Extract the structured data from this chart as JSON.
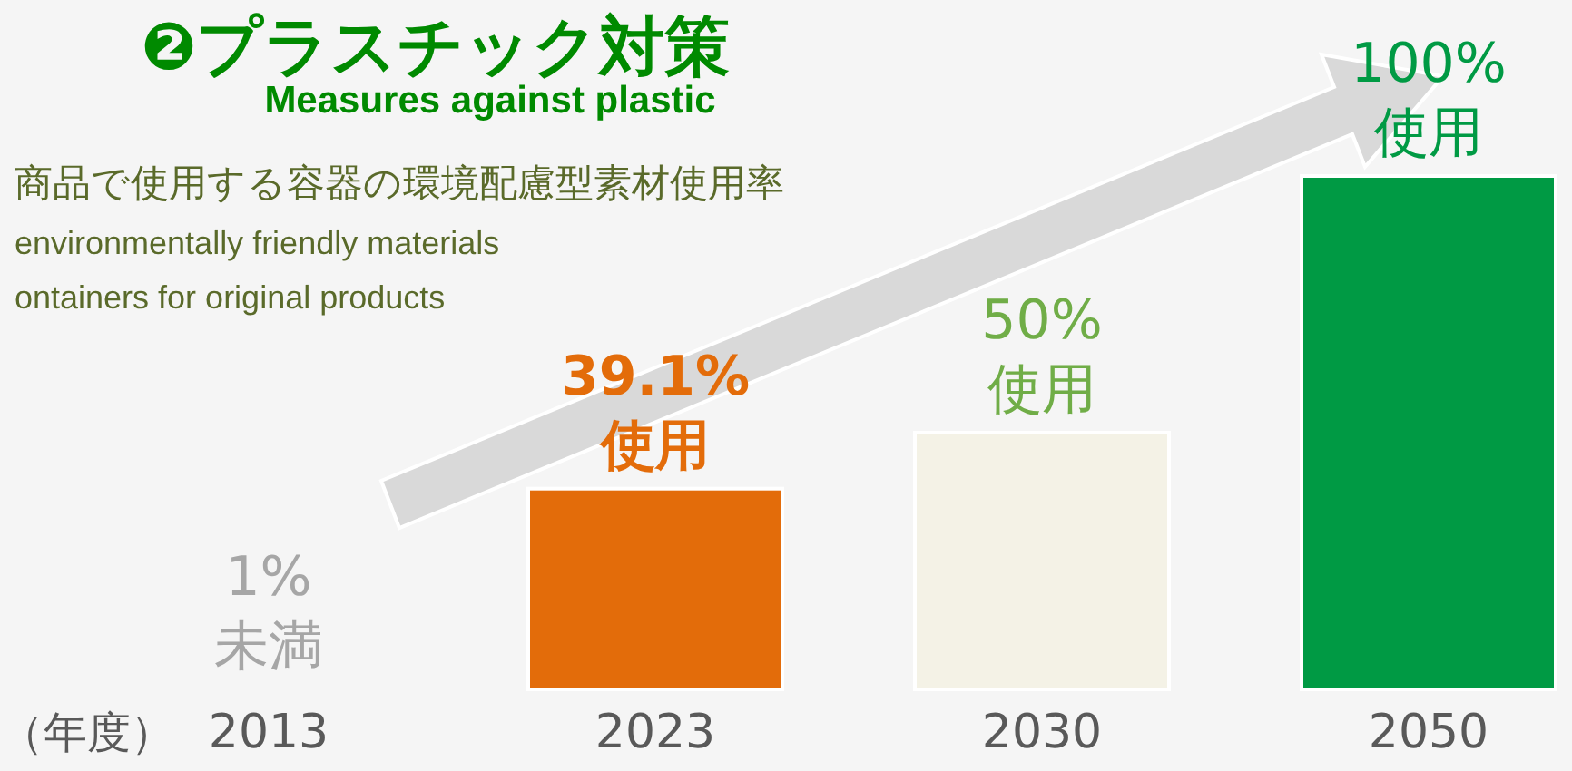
{
  "chart_data": {
    "type": "bar",
    "title": "❷プラスチック対策",
    "subtitle": "Measures against plastic",
    "xlabel": "（年度）",
    "annotations": [
      "商品で使用する容器の環境配慮型素材使用率",
      "environmentally friendly materials",
      "ontainers for original products"
    ],
    "categories": [
      "2013",
      "2023",
      "2030",
      "2050"
    ],
    "values": [
      null,
      39.1,
      50,
      100
    ],
    "colors": [
      "#a6a6a6",
      "#e36c0a",
      "#f4f2e6",
      "#009a44"
    ],
    "value_labels": [
      "1%\n未満",
      "39.1%\n使用",
      "50%\n使用",
      "100%\n使用"
    ]
  }
}
